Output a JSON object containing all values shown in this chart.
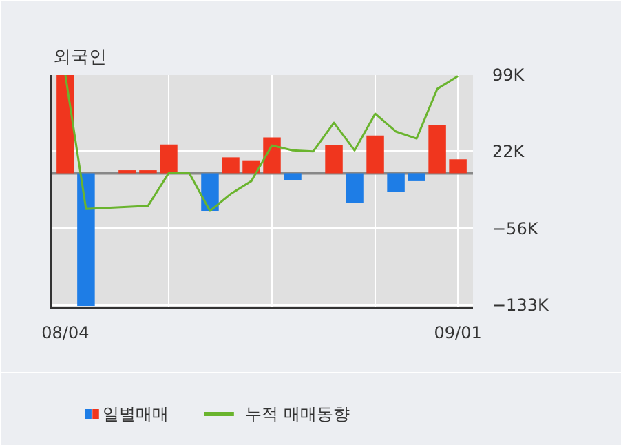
{
  "chart_data": {
    "type": "bar",
    "title": "외국인",
    "categories": [
      "08/04",
      null,
      null,
      null,
      null,
      null,
      null,
      null,
      null,
      null,
      null,
      null,
      null,
      null,
      null,
      null,
      null,
      null,
      null,
      "09/01"
    ],
    "series": [
      {
        "name": "일별매매",
        "colors": [
          "#f0361e",
          "#1e7de6",
          "#f0361e",
          "#f0361e",
          "#f0361e",
          "#f0361e",
          "#f0361e",
          "#1e7de6",
          "#f0361e",
          "#f0361e",
          "#f0361e",
          "#1e7de6",
          "#f0361e",
          "#f0361e",
          "#1e7de6",
          "#f0361e",
          "#1e7de6",
          "#1e7de6",
          "#f0361e",
          "#f0361e"
        ],
        "values": [
          99000,
          -134000,
          0,
          3000,
          3000,
          29000,
          0,
          -38000,
          16000,
          13000,
          36000,
          -7000,
          0,
          28000,
          -30000,
          38000,
          -19000,
          -8000,
          49000,
          14000
        ]
      },
      {
        "name": "누적 매매동향",
        "type": "line",
        "color": "#6ab42e",
        "values": [
          99000,
          -36000,
          -35000,
          -34000,
          -33000,
          0,
          0,
          -38000,
          -21000,
          -8000,
          28000,
          23000,
          22000,
          51000,
          23000,
          60000,
          42000,
          35000,
          85000,
          98000
        ]
      }
    ],
    "ylim": [
      -136000,
      99000
    ],
    "yticks": [
      {
        "value": 99000,
        "label": "99K"
      },
      {
        "value": 22000,
        "label": "22K"
      },
      {
        "value": -56000,
        "label": "−56K"
      },
      {
        "value": -133000,
        "label": "−133K"
      }
    ],
    "grid": true,
    "legend": "bottom"
  }
}
